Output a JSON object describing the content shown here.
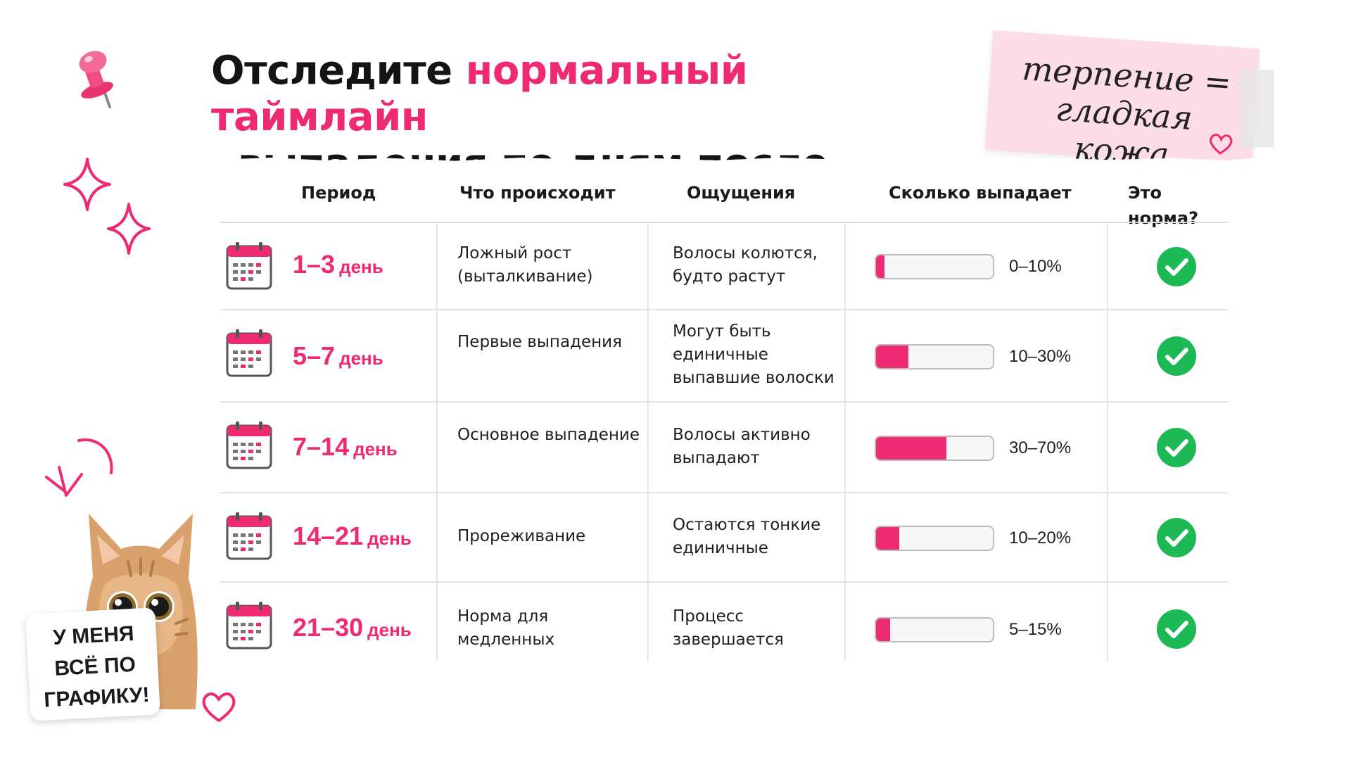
{
  "title": {
    "part1": "Отследите ",
    "accent": "нормальный таймлайн",
    "line2": "выпадения по дням после сеанса"
  },
  "note": {
    "line1": "терпение =",
    "line2": "гладкая кожа"
  },
  "table": {
    "headers": {
      "period": "Период",
      "what": "Что происходит",
      "feel": "Ощущения",
      "amount": "Сколько выпадает",
      "norm": "Это норма?"
    },
    "rows": [
      {
        "period": "1–3",
        "unit": "день",
        "what": "Ложный рост (выталкивание)",
        "feel": "Волосы колются, будто растут",
        "amount": "0–10%",
        "fill_fraction": 0.07,
        "norm": true
      },
      {
        "period": "5–7",
        "unit": "день",
        "what": "Первые выпадения",
        "feel": "Могут быть единичные выпавшие волоски",
        "amount": "10–30%",
        "fill_fraction": 0.28,
        "norm": true
      },
      {
        "period": "7–14",
        "unit": "день",
        "what": "Основное выпадение",
        "feel": "Волосы активно выпадают",
        "amount": "30–70%",
        "fill_fraction": 0.6,
        "norm": true
      },
      {
        "period": "14–21",
        "unit": "день",
        "what": "Прореживание",
        "feel": "Остаются тонкие единичные",
        "amount": "10–20%",
        "fill_fraction": 0.2,
        "norm": true
      },
      {
        "period": "21–30",
        "unit": "день",
        "what": "Норма для медленных",
        "feel": "Процесс завершается",
        "amount": "5–15%",
        "fill_fraction": 0.12,
        "norm": true
      }
    ]
  },
  "cat": {
    "line1": "У МЕНЯ",
    "line2": "ВСЁ ПО",
    "line3": "ГРАФИКУ!"
  },
  "colors": {
    "accent": "#ee2a73",
    "check": "#1db954",
    "note": "#fcdce6"
  },
  "icons": {
    "calendar": "calendar-icon",
    "check": "check-circle-icon",
    "pin": "pushpin-icon",
    "sparkle": "sparkle-icon",
    "heart": "heart-icon"
  }
}
